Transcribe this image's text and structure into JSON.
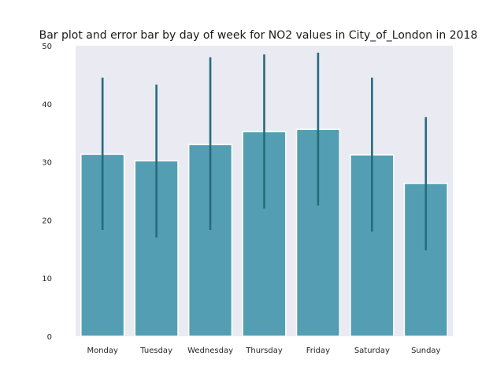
{
  "chart_data": {
    "type": "bar",
    "title": "Bar plot and error bar by day of week for NO2 values in City_of_London in 2018",
    "xlabel": "",
    "ylabel": "",
    "categories": [
      "Monday",
      "Tuesday",
      "Wednesday",
      "Thursday",
      "Friday",
      "Saturday",
      "Sunday"
    ],
    "values": [
      31.3,
      30.2,
      33.0,
      35.2,
      35.6,
      31.2,
      26.3
    ],
    "error_low": [
      18.3,
      17.0,
      18.3,
      22.0,
      22.5,
      18.0,
      14.8
    ],
    "error_high": [
      44.5,
      43.3,
      48.0,
      48.5,
      48.8,
      44.5,
      37.7
    ],
    "ylim": [
      0,
      50
    ],
    "yticks": [
      0,
      10,
      20,
      30,
      40,
      50
    ],
    "grid": false,
    "colors": {
      "plot_background": "#eaeaf2",
      "bar": "#539eb2",
      "bar_edge": "#ffffff",
      "error_bar": "#266b7d"
    }
  }
}
